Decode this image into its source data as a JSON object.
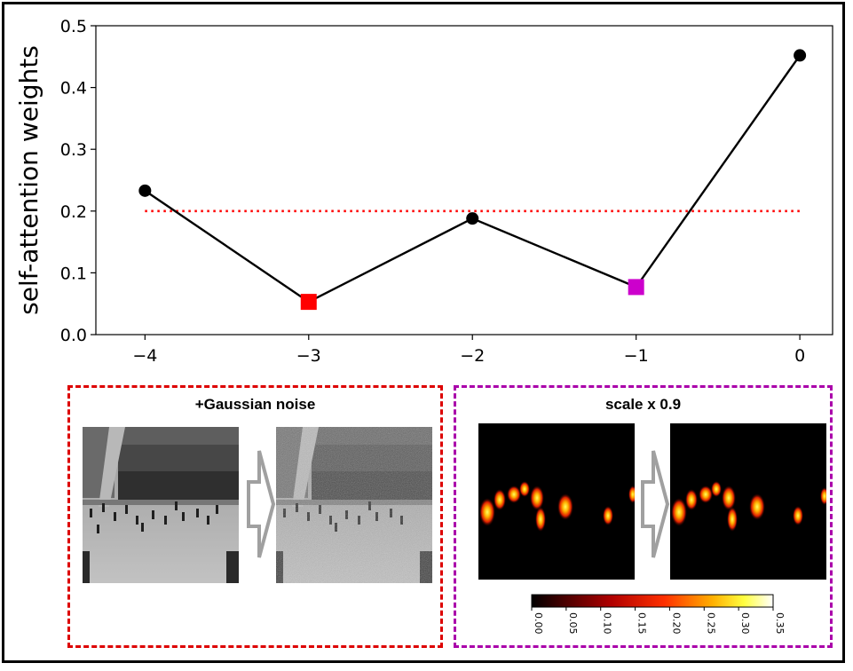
{
  "chart_data": {
    "type": "line",
    "title": "",
    "xlabel": "",
    "ylabel": "self-attention weights",
    "xlim": [
      -4.3,
      0.2
    ],
    "ylim": [
      0.0,
      0.5
    ],
    "xticks": [
      -4,
      -3,
      -2,
      -1,
      0
    ],
    "xtick_labels": [
      "−4",
      "−3",
      "−2",
      "−1",
      "0"
    ],
    "yticks": [
      0.0,
      0.1,
      0.2,
      0.3,
      0.4,
      0.5
    ],
    "ytick_labels": [
      "0.0",
      "0.1",
      "0.2",
      "0.3",
      "0.4",
      "0.5"
    ],
    "grid": false,
    "series": [
      {
        "x": [
          -4,
          -3,
          -2,
          -1,
          0
        ],
        "y": [
          0.233,
          0.053,
          0.188,
          0.077,
          0.452
        ],
        "color": "#000000",
        "marker_colors": [
          "#000000",
          "#ff0000",
          "#000000",
          "#cc00cc",
          "#000000"
        ],
        "marker_shapes": [
          "circle",
          "square",
          "circle",
          "square",
          "circle"
        ]
      }
    ],
    "reference_line": {
      "y": 0.2,
      "x": [
        -4,
        0
      ],
      "color": "#ff0000",
      "style": "dotted"
    }
  },
  "panels": {
    "noise": {
      "title": "+Gaussian noise",
      "border_color": "#dd0000",
      "images": [
        "crowd-original-image",
        "crowd-noisy-image"
      ]
    },
    "scale": {
      "title": "scale x 0.9",
      "border_color": "#aa00aa",
      "images": [
        "density-map-original",
        "density-map-scaled"
      ],
      "colorbar": {
        "ticks": [
          "0.00",
          "0.05",
          "0.10",
          "0.15",
          "0.20",
          "0.25",
          "0.30",
          "0.35"
        ],
        "colormap": "hot"
      }
    }
  },
  "colors": {
    "noise_accent": "#dd0000",
    "scale_accent": "#aa00aa",
    "arrow": "#a0a0a0"
  }
}
